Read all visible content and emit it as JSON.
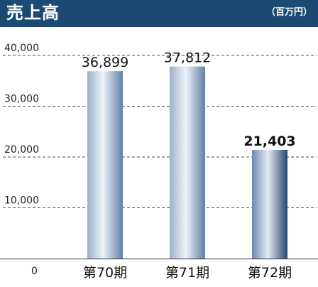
{
  "header": {
    "title": "売上高",
    "unit": "（百万円）"
  },
  "colors": {
    "header_bg": "#1c4a73",
    "bar_dark": "#5f7fa7",
    "bar_highlight": "#b6c4d6",
    "bar_light": "#eef2f8",
    "bar_last_dark": "#26456f",
    "gridline": "#4d4d4d"
  },
  "chart_data": {
    "type": "bar",
    "title": "売上高",
    "ylabel": "百万円",
    "categories": [
      "第70期",
      "第71期",
      "第72期"
    ],
    "values": [
      36899,
      37812,
      21403
    ],
    "value_labels": [
      "36,899",
      "37,812",
      "21,403"
    ],
    "highlight_index": 2,
    "ylim": [
      0,
      40000
    ],
    "yticks": [
      0,
      10000,
      20000,
      30000,
      40000
    ],
    "ytick_labels": [
      "0",
      "10,000",
      "20,000",
      "30,000",
      "40,000"
    ],
    "grid": true
  }
}
